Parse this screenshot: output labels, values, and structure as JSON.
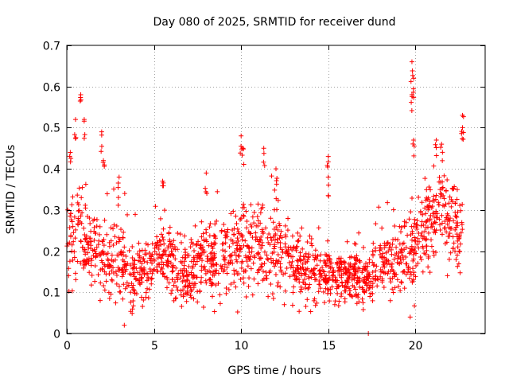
{
  "chart_data": {
    "type": "scatter",
    "title": "Day 080 of 2025, SRMTID for receiver dund",
    "xlabel": "GPS time / hours",
    "ylabel": "SRMTID / TECUs",
    "xlim": [
      0,
      24
    ],
    "ylim": [
      0,
      0.7
    ],
    "xticks": [
      0,
      5,
      10,
      15,
      20
    ],
    "xtick_labels": [
      "0",
      "5",
      "10",
      "15",
      "20"
    ],
    "yticks": [
      0,
      0.1,
      0.2,
      0.3,
      0.4,
      0.5,
      0.6,
      0.7
    ],
    "ytick_labels": [
      "0",
      "0.1",
      "0.2",
      "0.3",
      "0.4",
      "0.5",
      "0.6",
      "0.7"
    ],
    "grid": true,
    "marker": "plus",
    "series_color": "#ff0000",
    "series": [
      {
        "name": "SRMTID",
        "profile": {
          "x": [
            0,
            0.3,
            0.7,
            1.0,
            1.5,
            2.0,
            2.5,
            3.0,
            3.5,
            4.0,
            4.5,
            5.0,
            5.5,
            6.0,
            6.5,
            7.0,
            7.5,
            8.0,
            8.5,
            9.0,
            9.5,
            10.0,
            10.5,
            11.0,
            11.5,
            12.0,
            12.5,
            13.0,
            13.5,
            14.0,
            14.5,
            15.0,
            15.5,
            16.0,
            16.5,
            17.0,
            17.5,
            18.0,
            18.5,
            19.0,
            19.5,
            20.0,
            20.5,
            21.0,
            21.5,
            22.0,
            22.5,
            22.7
          ],
          "median": [
            0.19,
            0.24,
            0.25,
            0.22,
            0.19,
            0.19,
            0.18,
            0.18,
            0.14,
            0.14,
            0.16,
            0.17,
            0.17,
            0.16,
            0.15,
            0.15,
            0.17,
            0.18,
            0.18,
            0.19,
            0.19,
            0.2,
            0.21,
            0.22,
            0.22,
            0.21,
            0.18,
            0.17,
            0.16,
            0.15,
            0.14,
            0.14,
            0.14,
            0.14,
            0.13,
            0.13,
            0.14,
            0.16,
            0.17,
            0.18,
            0.2,
            0.21,
            0.24,
            0.28,
            0.31,
            0.28,
            0.25,
            0.27
          ],
          "spread": [
            0.05,
            0.07,
            0.08,
            0.06,
            0.05,
            0.06,
            0.06,
            0.06,
            0.05,
            0.05,
            0.05,
            0.05,
            0.05,
            0.05,
            0.05,
            0.05,
            0.05,
            0.06,
            0.06,
            0.06,
            0.06,
            0.07,
            0.07,
            0.07,
            0.07,
            0.07,
            0.06,
            0.05,
            0.05,
            0.05,
            0.04,
            0.04,
            0.04,
            0.04,
            0.04,
            0.04,
            0.05,
            0.05,
            0.05,
            0.06,
            0.07,
            0.07,
            0.06,
            0.06,
            0.07,
            0.07,
            0.06,
            0.06
          ]
        },
        "peaks": [
          {
            "x": 0.2,
            "y": 0.44
          },
          {
            "x": 0.5,
            "y": 0.52
          },
          {
            "x": 0.8,
            "y": 0.58
          },
          {
            "x": 1.0,
            "y": 0.52
          },
          {
            "x": 2.0,
            "y": 0.49
          },
          {
            "x": 2.1,
            "y": 0.42
          },
          {
            "x": 3.0,
            "y": 0.38
          },
          {
            "x": 3.3,
            "y": 0.02
          },
          {
            "x": 5.5,
            "y": 0.37
          },
          {
            "x": 8.0,
            "y": 0.39
          },
          {
            "x": 10.0,
            "y": 0.48
          },
          {
            "x": 10.1,
            "y": 0.45
          },
          {
            "x": 11.3,
            "y": 0.45
          },
          {
            "x": 12.0,
            "y": 0.4
          },
          {
            "x": 15.0,
            "y": 0.43
          },
          {
            "x": 15.0,
            "y": 0.38
          },
          {
            "x": 19.8,
            "y": 0.66
          },
          {
            "x": 19.9,
            "y": 0.62
          },
          {
            "x": 19.8,
            "y": 0.58
          },
          {
            "x": 19.9,
            "y": 0.47
          },
          {
            "x": 19.7,
            "y": 0.04
          },
          {
            "x": 21.2,
            "y": 0.47
          },
          {
            "x": 21.5,
            "y": 0.46
          },
          {
            "x": 22.7,
            "y": 0.53
          },
          {
            "x": 22.7,
            "y": 0.5
          },
          {
            "x": 17.3,
            "y": 0.0
          }
        ]
      }
    ]
  }
}
